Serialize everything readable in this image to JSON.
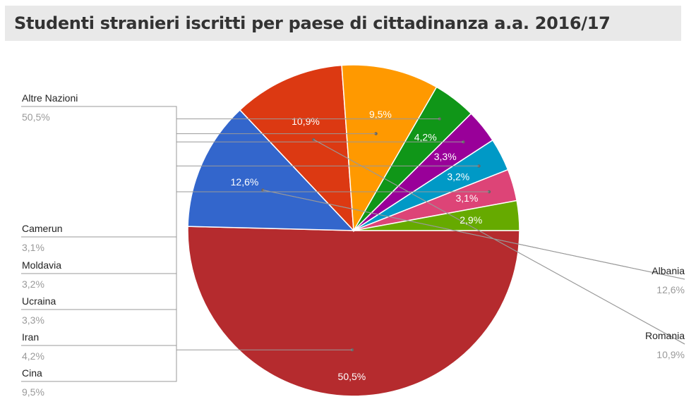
{
  "title": "Studenti stranieri iscritti per paese di cittadinanza a.a. 2016/17",
  "chart_data": {
    "type": "pie",
    "title": "Studenti stranieri iscritti per paese di cittadinanza a.a. 2016/17",
    "slices": [
      {
        "label": "Altre Nazioni",
        "value": 50.5,
        "display": "50,5%",
        "color": "#b52b2e"
      },
      {
        "label": "Albania",
        "value": 12.6,
        "display": "12,6%",
        "color": "#3366cc"
      },
      {
        "label": "Romania",
        "value": 10.9,
        "display": "10,9%",
        "color": "#dc3912"
      },
      {
        "label": "Cina",
        "value": 9.5,
        "display": "9,5%",
        "color": "#ff9900"
      },
      {
        "label": "Iran",
        "value": 4.2,
        "display": "4,2%",
        "color": "#109618"
      },
      {
        "label": "Ucraina",
        "value": 3.3,
        "display": "3,3%",
        "color": "#990099"
      },
      {
        "label": "Moldavia",
        "value": 3.2,
        "display": "3,2%",
        "color": "#0099c6"
      },
      {
        "label": "Camerun",
        "value": 3.1,
        "display": "3,1%",
        "color": "#dd4477"
      },
      {
        "label": "",
        "value": 2.9,
        "display": "2,9%",
        "color": "#66aa00"
      }
    ],
    "legend": "leader-lines"
  }
}
